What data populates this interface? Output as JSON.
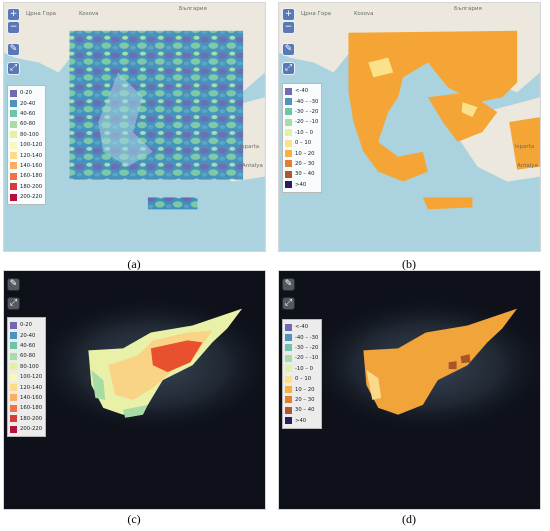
{
  "panels": [
    {
      "caption": "(a)",
      "legend": [
        "0-20",
        "20-40",
        "40-60",
        "60-80",
        "80-100",
        "100-120",
        "120-140",
        "140-160",
        "160-180",
        "180-200",
        "200-220"
      ]
    },
    {
      "caption": "(b)",
      "legend": [
        "<-40",
        "-40 – -30",
        "-30 – -20",
        "-20 – -10",
        "-10 – 0",
        "0 – 10",
        "10 – 20",
        "20 – 30",
        "30 – 40",
        ">40"
      ]
    },
    {
      "caption": "(c)",
      "legend": [
        "0-20",
        "20-40",
        "40-60",
        "60-80",
        "80-100",
        "100-120",
        "120-140",
        "140-160",
        "160-180",
        "180-200",
        "200-220"
      ]
    },
    {
      "caption": "(d)",
      "legend": [
        "<-40",
        "-40 – -30",
        "-30 – -20",
        "-20 – -10",
        "-10 – 0",
        "0 – 10",
        "10 – 20",
        "20 – 30",
        "30 – 40",
        ">40"
      ]
    }
  ],
  "legend_colors_abs": [
    "#7269b3",
    "#4d93bd",
    "#6ec4a8",
    "#a8dca5",
    "#e2f29d",
    "#fbf7b6",
    "#fddb8a",
    "#fbad63",
    "#f07249",
    "#d73a3a",
    "#b3103a"
  ],
  "legend_colors_diff": [
    "#7269b3",
    "#4d93bd",
    "#6ec4a8",
    "#a8dca5",
    "#e2f29d",
    "#fbe28a",
    "#f9b040",
    "#e0802d",
    "#b35628",
    "#2b1d5b"
  ],
  "map_labels": {
    "kosova": "Kosova",
    "bulgaria": "България",
    "crna_gora": "Црна Гора",
    "isparta": "Isparta",
    "antalya": "Antalya"
  },
  "controls": {
    "zoom_in": "+",
    "zoom_out": "−",
    "draw": "✎",
    "fullscreen": "⤢"
  }
}
